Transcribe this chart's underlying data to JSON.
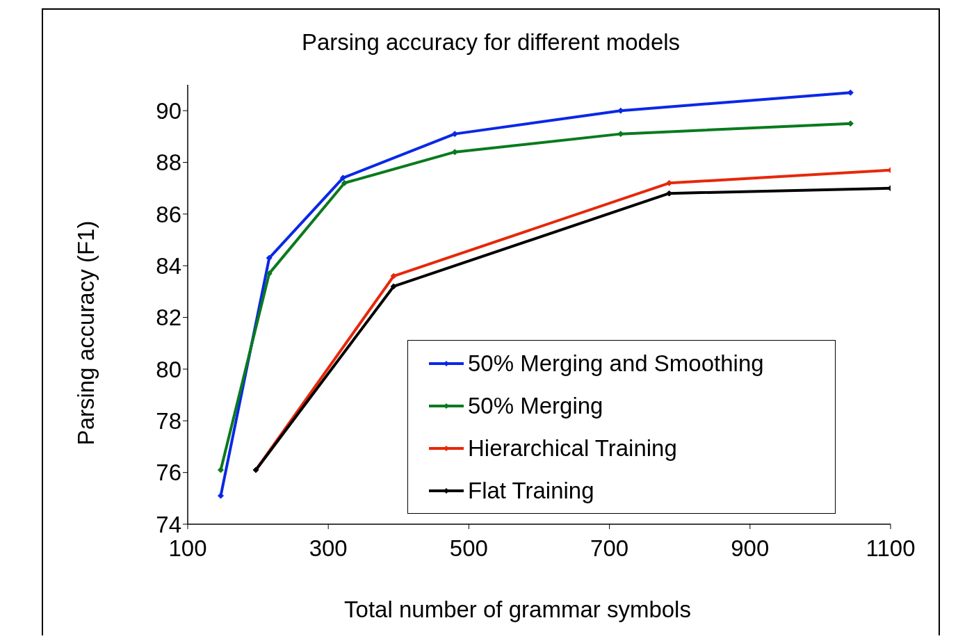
{
  "chart_data": {
    "type": "line",
    "title": "Parsing accuracy for different models",
    "xlabel": "Total number of grammar symbols",
    "ylabel": "Parsing accuracy (F1)",
    "xlim": [
      100,
      1100
    ],
    "xticks": [
      100,
      300,
      500,
      700,
      900,
      1100
    ],
    "ylim": [
      74,
      91
    ],
    "yticks": [
      74,
      76,
      78,
      80,
      82,
      84,
      86,
      88,
      90
    ],
    "grid": false,
    "legend": "bottom right",
    "marker": "diamond",
    "line_style": "solid",
    "series": [
      {
        "name": "50% Merging and Smoothing",
        "color": "#0a28e6",
        "x": [
          147,
          216,
          321,
          480,
          716,
          1043
        ],
        "values": [
          75.1,
          84.3,
          87.4,
          89.1,
          90.0,
          90.7
        ]
      },
      {
        "name": "50% Merging",
        "color": "#0a7a1e",
        "x": [
          147,
          216,
          323,
          480,
          716,
          1043
        ],
        "values": [
          76.1,
          83.7,
          87.2,
          88.4,
          89.1,
          89.5
        ]
      },
      {
        "name": "Hierarchical Training",
        "color": "#e6280a",
        "x": [
          197,
          393,
          785,
          1100
        ],
        "values": [
          76.1,
          83.6,
          87.2,
          87.7
        ]
      },
      {
        "name": "Flat Training",
        "color": "#000000",
        "x": [
          197,
          393,
          785,
          1100
        ],
        "values": [
          76.1,
          83.2,
          86.8,
          87.0
        ]
      }
    ]
  }
}
